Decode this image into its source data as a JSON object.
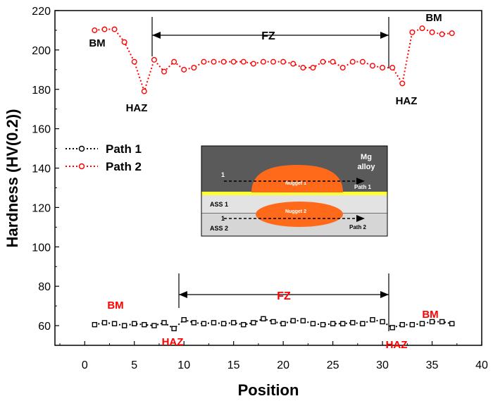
{
  "chart_data": {
    "type": "scatter",
    "xlabel": "Position",
    "ylabel": "Hardness (HV(0.2))",
    "xlim": [
      -3,
      40
    ],
    "ylim": [
      50,
      220
    ],
    "x_ticks": [
      "0",
      "5",
      "10",
      "15",
      "20",
      "25",
      "30",
      "35",
      "40"
    ],
    "y_ticks": [
      "60",
      "80",
      "100",
      "120",
      "140",
      "160",
      "180",
      "200",
      "220"
    ],
    "legend_position": "left-middle",
    "grid": false,
    "series": [
      {
        "name": "Path 1",
        "color": "#000000",
        "x": [
          1,
          2,
          3,
          4,
          5,
          6,
          7,
          8,
          9,
          10,
          11,
          12,
          13,
          14,
          15,
          16,
          17,
          18,
          19,
          20,
          21,
          22,
          23,
          24,
          25,
          26,
          27,
          28,
          29,
          30,
          31,
          32,
          33,
          34,
          35,
          36,
          37
        ],
        "y": [
          60.5,
          61.5,
          61,
          60,
          61,
          60.5,
          60,
          61.5,
          58.5,
          63,
          61.5,
          61,
          61.5,
          61,
          61.5,
          60.5,
          61.5,
          63.5,
          62,
          61,
          62.5,
          62.5,
          61,
          60.5,
          61,
          61,
          61.5,
          61,
          63,
          62,
          59,
          60.5,
          60.5,
          61,
          62,
          62,
          61
        ]
      },
      {
        "name": "Path 2",
        "color": "#ff0000",
        "x": [
          1,
          2,
          3,
          4,
          5,
          6,
          7,
          8,
          9,
          10,
          11,
          12,
          13,
          14,
          15,
          16,
          17,
          18,
          19,
          20,
          21,
          22,
          23,
          24,
          25,
          26,
          27,
          28,
          29,
          30,
          31,
          32,
          33,
          34,
          35,
          36,
          37
        ],
        "y": [
          210,
          210.5,
          210.5,
          204,
          194,
          179,
          195,
          189,
          194,
          190,
          191,
          194,
          194,
          194,
          194,
          194,
          193,
          194,
          194,
          194,
          193,
          191,
          191,
          194,
          194,
          191,
          194,
          194,
          192,
          191,
          191,
          183,
          209,
          211,
          209,
          208,
          208.5
        ]
      }
    ],
    "annotations": {
      "path2": {
        "bm_left": "BM",
        "bm_right": "BM",
        "haz_left": "HAZ",
        "haz_right": "HAZ",
        "fz": "FZ"
      },
      "path1": {
        "bm_left": "BM",
        "bm_right": "BM",
        "haz_left": "HAZ",
        "haz_right": "HAZ",
        "fz": "FZ"
      }
    },
    "inset": {
      "mg_alloy": "Mg\nalloy",
      "ass1": "ASS 1",
      "ass2": "ASS 2",
      "nugget1": "Nugget 1",
      "nugget2": "Nugget 2",
      "path1": "Path 1",
      "path2": "Path 2",
      "start1": "1",
      "start2": "1",
      "colors": {
        "mg": "#5a5a5a",
        "interface": "#ffff33",
        "ass": "#d9d9d9",
        "nugget": "#ff6a1a"
      }
    }
  }
}
